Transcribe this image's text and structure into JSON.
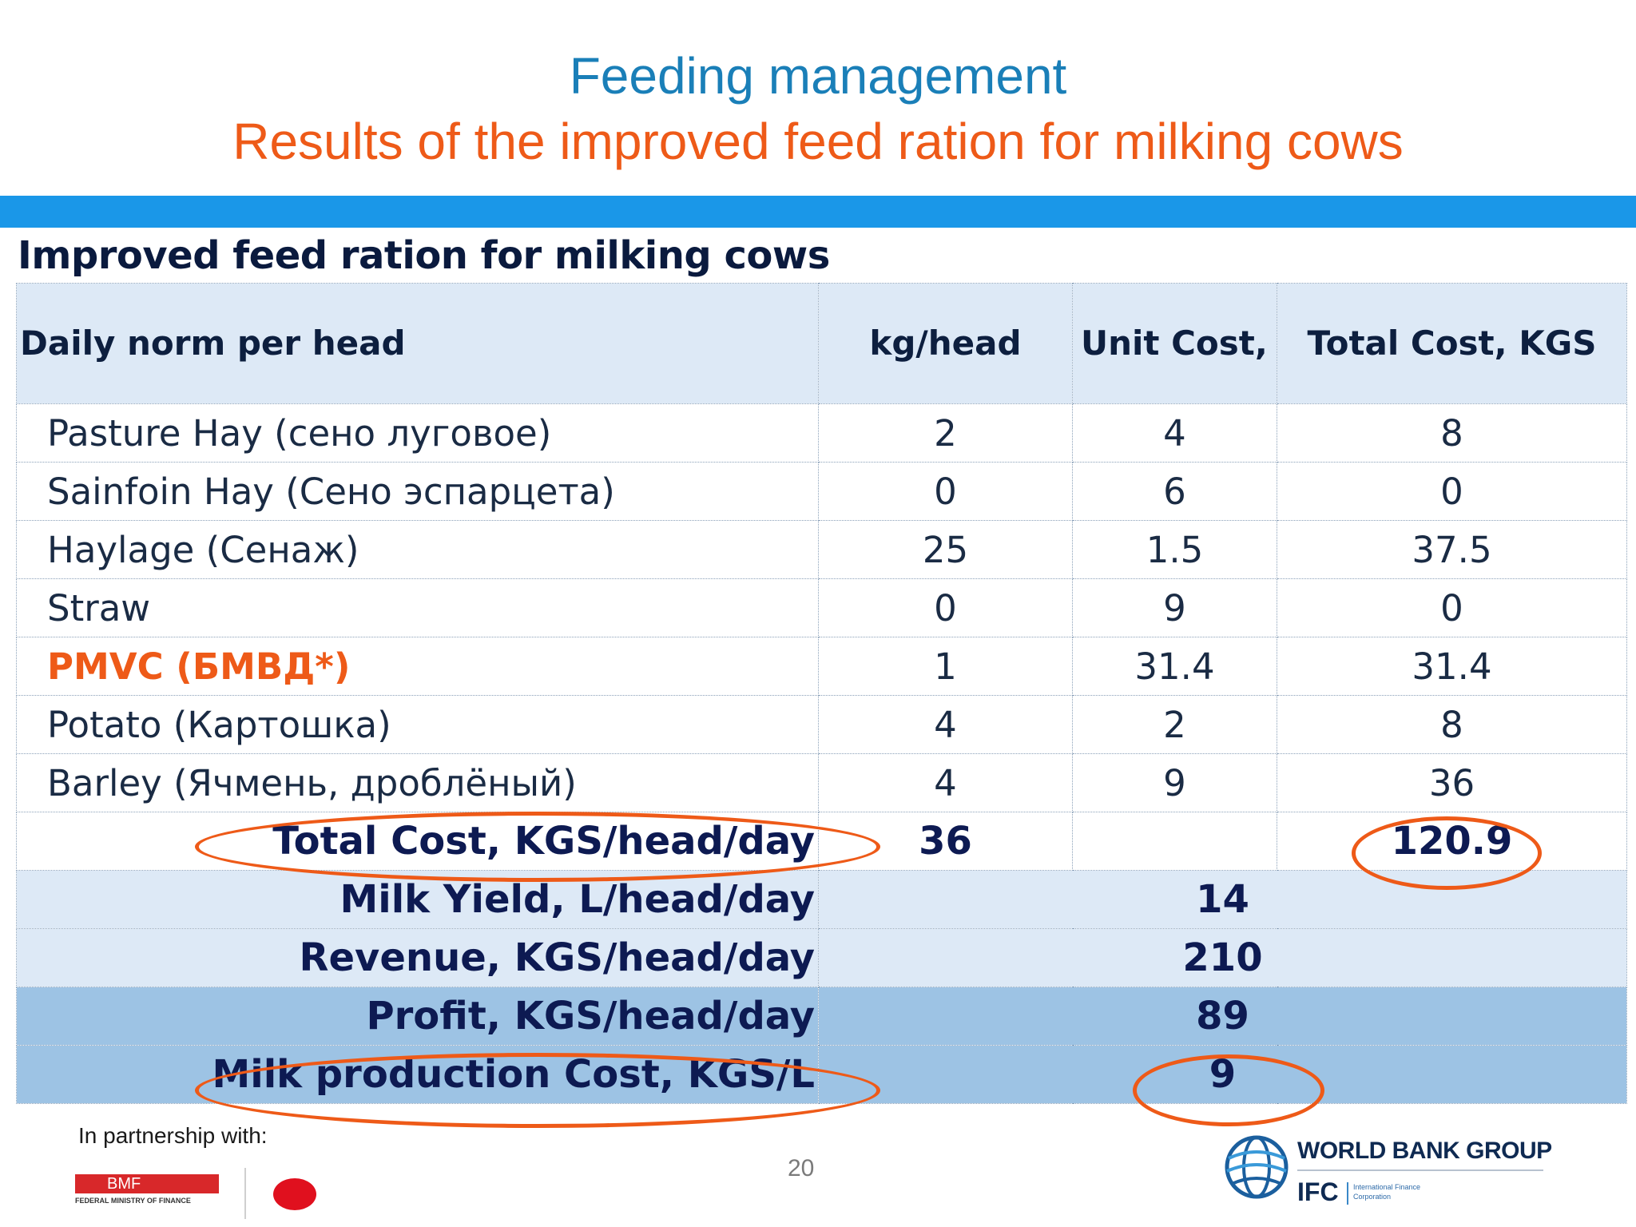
{
  "slide": {
    "title": "Feeding management",
    "subtitle": "Results of the improved feed ration for milking cows",
    "page_number": "20"
  },
  "table": {
    "caption": "Improved feed ration for milking cows",
    "columns": [
      "Daily norm per head",
      "kg/head",
      "Unit Cost, KGS/kg",
      "Total Cost, KGS"
    ],
    "rows": [
      {
        "item": "Pasture Hay (сено луговое)",
        "kg": "2",
        "unit_cost": "4",
        "total_cost": "8",
        "highlight": false
      },
      {
        "item": "Sainfoin Hay (Сено эспарцета)",
        "kg": "0",
        "unit_cost": "6",
        "total_cost": "0",
        "highlight": false
      },
      {
        "item": "Haylage (Сенаж)",
        "kg": "25",
        "unit_cost": "1.5",
        "total_cost": "37.5",
        "highlight": false
      },
      {
        "item": "Straw",
        "kg": "0",
        "unit_cost": "9",
        "total_cost": "0",
        "highlight": false
      },
      {
        "item": "PMVC (БМВД*)",
        "kg": "1",
        "unit_cost": "31.4",
        "total_cost": "31.4",
        "highlight": true
      },
      {
        "item": "Potato (Картошка)",
        "kg": "4",
        "unit_cost": "2",
        "total_cost": "8",
        "highlight": false
      },
      {
        "item": "Barley (Ячмень, дроблёный)",
        "kg": "4",
        "unit_cost": "9",
        "total_cost": "36",
        "highlight": false
      }
    ],
    "total": {
      "label": "Total Cost, KGS/head/day",
      "kg": "36",
      "total_cost": "120.9"
    },
    "summary": [
      {
        "label": "Milk Yield, L/head/day",
        "value": "14"
      },
      {
        "label": "Revenue, KGS/head/day",
        "value": "210"
      },
      {
        "label": "Profit, KGS/head/day",
        "value": "89"
      },
      {
        "label": "Milk production Cost, KGS/L",
        "value": "9"
      }
    ]
  },
  "footer": {
    "partnership": "In partnership with:",
    "bmf_logo": "BMF",
    "bmf_logo_sub": "FEDERAL MINISTRY OF FINANCE",
    "wbg_name": "WORLD BANK GROUP",
    "ifc_name": "IFC",
    "ifc_sub": "International Finance Corporation"
  },
  "colors": {
    "title": "#1a7fb8",
    "subtitle": "#ee5a18",
    "band": "#1a97e8",
    "header_bg": "#dde9f6",
    "dark_row_bg": "#9dc3e4",
    "ellipse": "#ee5a18"
  },
  "icons": [
    "world-bank-globe-icon",
    "japan-flag-icon",
    "bmf-logo-icon"
  ]
}
